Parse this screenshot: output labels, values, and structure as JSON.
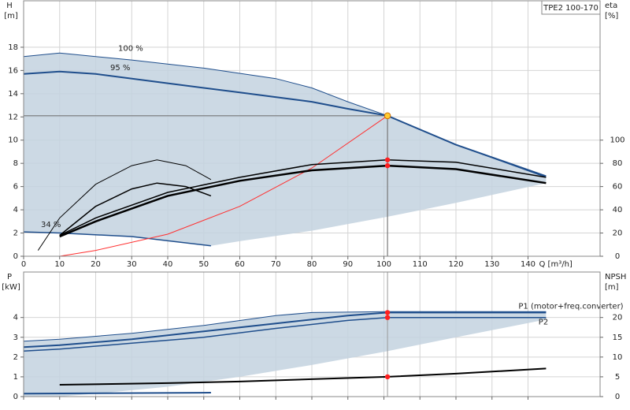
{
  "chart_data": [
    {
      "type": "line",
      "model": "TPE2 100-170",
      "y_label": "H",
      "y_unit": "[m]",
      "y2_label": "eta",
      "y2_unit": "[%]",
      "x_label": "Q [m³/h]",
      "xlim": [
        0,
        160
      ],
      "xticks": [
        0,
        10,
        20,
        30,
        40,
        50,
        60,
        70,
        80,
        90,
        100,
        110,
        120,
        130,
        140
      ],
      "ylim": [
        0,
        22
      ],
      "yticks": [
        0,
        2,
        4,
        6,
        8,
        10,
        12,
        14,
        16,
        18
      ],
      "y2lim": [
        0,
        220
      ],
      "y2ticks": [
        0,
        20,
        40,
        60,
        80,
        100
      ],
      "grid": true,
      "area": {
        "color": "#c3d2df",
        "x": [
          0,
          10,
          30,
          50,
          70,
          80,
          90,
          101,
          120,
          145,
          145,
          120,
          101,
          80,
          60,
          52,
          30,
          10,
          0
        ],
        "values": [
          17.2,
          17.5,
          16.9,
          16.2,
          15.3,
          14.5,
          13.3,
          12.1,
          9.6,
          6.8,
          6.3,
          4.6,
          3.4,
          2.2,
          1.3,
          0.9,
          1.7,
          2.0,
          2.1
        ]
      },
      "series": [
        {
          "name": "100 %",
          "color": "#1f4e8c",
          "width": 1,
          "x": [
            0,
            10,
            30,
            50,
            70,
            80,
            90,
            101,
            120,
            145
          ],
          "values": [
            17.2,
            17.5,
            16.9,
            16.2,
            15.3,
            14.5,
            13.3,
            12.1,
            9.6,
            6.8
          ]
        },
        {
          "name": "95 %",
          "color": "#1f4e8c",
          "width": 2,
          "x": [
            0,
            10,
            20,
            40,
            60,
            80,
            90,
            101,
            120,
            145
          ],
          "values": [
            15.7,
            15.9,
            15.7,
            14.9,
            14.1,
            13.3,
            12.7,
            12.1,
            9.6,
            6.9
          ]
        },
        {
          "name": "34 %",
          "color": "#1f4e8c",
          "width": 1.5,
          "x": [
            0,
            10,
            30,
            52
          ],
          "values": [
            2.1,
            2.0,
            1.7,
            0.9
          ]
        },
        {
          "color": "#ff3030",
          "width": 1,
          "x": [
            10,
            20,
            40,
            60,
            80,
            101
          ],
          "values": [
            0,
            0.5,
            1.9,
            4.3,
            7.6,
            12.1
          ]
        },
        {
          "color": "#000000",
          "width": 1,
          "axis": "y2",
          "x": [
            4,
            10,
            20,
            30,
            37,
            45,
            52
          ],
          "values": [
            5,
            33,
            62,
            78,
            83,
            78,
            66
          ]
        },
        {
          "color": "#000000",
          "width": 1.5,
          "axis": "y2",
          "x": [
            10,
            20,
            30,
            37,
            45,
            52
          ],
          "values": [
            18,
            43,
            58,
            63,
            60,
            52
          ]
        },
        {
          "color": "#000000",
          "width": 1.5,
          "axis": "y2",
          "x": [
            10,
            20,
            40,
            60,
            80,
            101,
            120,
            145
          ],
          "values": [
            18,
            33,
            55,
            68,
            79,
            83,
            81,
            68
          ]
        },
        {
          "color": "#000000",
          "width": 2.5,
          "axis": "y2",
          "x": [
            10,
            20,
            40,
            60,
            80,
            101,
            120,
            145
          ],
          "values": [
            17,
            30,
            52,
            65,
            74,
            78,
            75,
            63
          ]
        }
      ],
      "duty_point": {
        "x": 101,
        "y": 12.1,
        "color": "#ffcc33"
      },
      "markers": [
        {
          "x": 101,
          "y": 83,
          "axis": "y2",
          "color": "#ff2020"
        },
        {
          "x": 101,
          "y": 78,
          "axis": "y2",
          "color": "#ff2020"
        }
      ]
    },
    {
      "type": "line",
      "y_label": "P",
      "y_unit": "[kW]",
      "y2_label": "NPSH",
      "y2_unit": "[m]",
      "xlim": [
        0,
        160
      ],
      "xticks": [
        0,
        10,
        20,
        30,
        40,
        50,
        60,
        70,
        80,
        90,
        100,
        110,
        120,
        130,
        140
      ],
      "ylim": [
        0,
        6.3
      ],
      "yticks": [
        0,
        1,
        2,
        3,
        4
      ],
      "y2lim": [
        0,
        31.5
      ],
      "y2ticks": [
        0,
        5,
        10,
        15,
        20
      ],
      "grid": true,
      "area": {
        "color": "#c3d2df",
        "x": [
          0,
          10,
          30,
          50,
          70,
          80,
          101,
          145,
          145,
          120,
          101,
          80,
          60,
          40,
          20,
          10,
          0
        ],
        "values": [
          2.8,
          2.9,
          3.2,
          3.6,
          4.1,
          4.25,
          4.3,
          4.3,
          3.9,
          3.0,
          2.3,
          1.6,
          1.0,
          0.5,
          0.15,
          0,
          0
        ]
      },
      "series": [
        {
          "color": "#1f4e8c",
          "width": 1,
          "x": [
            0,
            10,
            30,
            50,
            70,
            80,
            101,
            145
          ],
          "values": [
            2.8,
            2.9,
            3.2,
            3.6,
            4.1,
            4.25,
            4.3,
            4.3
          ]
        },
        {
          "name": "P1 (motor+freq.converter)",
          "color": "#1f4e8c",
          "width": 2,
          "x": [
            0,
            10,
            30,
            50,
            70,
            90,
            101,
            145
          ],
          "values": [
            2.5,
            2.6,
            2.9,
            3.3,
            3.7,
            4.1,
            4.25,
            4.25
          ]
        },
        {
          "name": "P2",
          "color": "#1f4e8c",
          "width": 1.5,
          "x": [
            0,
            10,
            30,
            50,
            70,
            90,
            101,
            145
          ],
          "values": [
            2.3,
            2.4,
            2.7,
            3.0,
            3.45,
            3.85,
            4.0,
            4.0
          ]
        },
        {
          "color": "#1f4e8c",
          "width": 2,
          "x": [
            0,
            52
          ],
          "values": [
            0.15,
            0.2
          ]
        },
        {
          "color": "#000000",
          "width": 2,
          "axis": "y2",
          "x": [
            10,
            40,
            60,
            80,
            101,
            120,
            145
          ],
          "values": [
            3.0,
            3.4,
            3.8,
            4.4,
            5.0,
            5.8,
            7.1
          ]
        }
      ],
      "markers": [
        {
          "x": 101,
          "y": 4.25,
          "color": "#ff2020"
        },
        {
          "x": 101,
          "y": 4.0,
          "color": "#ff2020"
        },
        {
          "x": 101,
          "y": 5.0,
          "axis": "y2",
          "color": "#ff2020"
        }
      ]
    }
  ]
}
